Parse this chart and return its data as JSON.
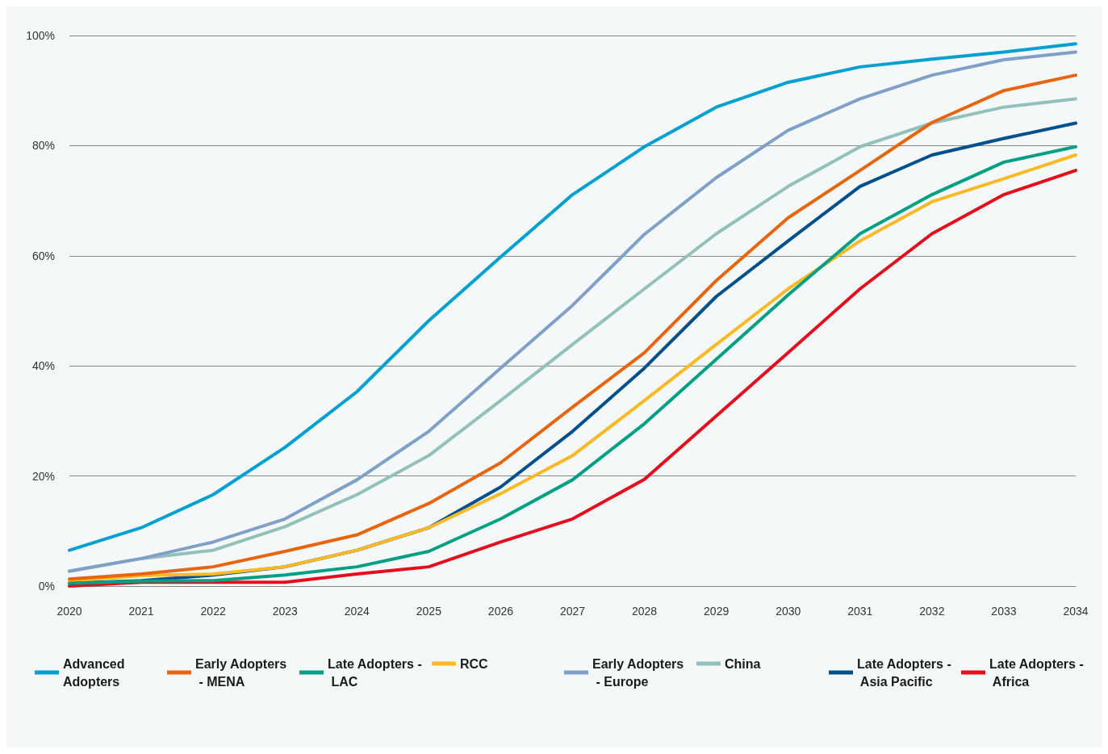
{
  "chart_data": {
    "type": "line",
    "categories": [
      "2020",
      "2021",
      "2022",
      "2023",
      "2024",
      "2025",
      "2026",
      "2027",
      "2028",
      "2029",
      "2030",
      "2031",
      "2032",
      "2033",
      "2034"
    ],
    "ylim": [
      0,
      100
    ],
    "yticks": [
      {
        "value": 0,
        "label": "0%"
      },
      {
        "value": 20,
        "label": "20%"
      },
      {
        "value": 40,
        "label": "40%"
      },
      {
        "value": 60,
        "label": "60%"
      },
      {
        "value": 80,
        "label": "80%"
      },
      {
        "value": 100,
        "label": "100%"
      }
    ],
    "grid": "y",
    "legend": "bottom",
    "marker": "none",
    "line_style": "solid",
    "series": [
      {
        "name": "Advanced Adopters",
        "color": "#00a0d0",
        "values": [
          6.5,
          10.6,
          16.6,
          25.2,
          35.3,
          48.2,
          59.8,
          71.1,
          79.8,
          87,
          91.5,
          94.3,
          95.7,
          97,
          98.5
        ]
      },
      {
        "name": "Early Adopters - MENA",
        "color": "#e8650f",
        "values": [
          1.3,
          2.2,
          3.5,
          6.3,
          9.3,
          15,
          22.4,
          32.5,
          42.4,
          55.5,
          66.9,
          75.5,
          84.2,
          90,
          92.8
        ]
      },
      {
        "name": "Late Adopters - LAC",
        "color": "#00a082",
        "values": [
          0.5,
          0.9,
          1,
          2,
          3.5,
          6.3,
          12.2,
          19.3,
          29.5,
          41.2,
          52.9,
          64,
          71.1,
          77,
          79.8
        ]
      },
      {
        "name": "RCC",
        "color": "#fbb925",
        "values": [
          0.9,
          1.9,
          2.2,
          3.5,
          6.5,
          10.6,
          16.8,
          23.7,
          33.7,
          43.9,
          54,
          62.7,
          69.8,
          74,
          78.3
        ]
      },
      {
        "name": "Early Adopters - Europe",
        "color": "#80a0c8",
        "values": [
          2.7,
          5,
          8,
          12.2,
          19.3,
          28.1,
          39.6,
          51,
          63.9,
          74.2,
          82.8,
          88.5,
          92.8,
          95.6,
          97
        ]
      },
      {
        "name": "China",
        "color": "#92c0bb",
        "values": [
          2.7,
          5,
          6.5,
          10.8,
          16.6,
          23.7,
          33.7,
          43.9,
          54,
          64,
          72.6,
          79.8,
          84.1,
          87,
          88.5
        ]
      },
      {
        "name": "Late Adopters - Asia Pacific",
        "color": "#00508c",
        "values": [
          0.5,
          1,
          2,
          3.5,
          6.5,
          10.6,
          18,
          28.1,
          39.6,
          52.6,
          62.7,
          72.6,
          78.3,
          81.3,
          84.1
        ]
      },
      {
        "name": "Late Adopters - Africa",
        "color": "#e30f1c",
        "values": [
          0,
          0.7,
          0.7,
          0.7,
          2.2,
          3.5,
          8,
          12.2,
          19.4,
          30.9,
          42.4,
          54,
          64,
          71.1,
          75.5
        ]
      }
    ]
  }
}
